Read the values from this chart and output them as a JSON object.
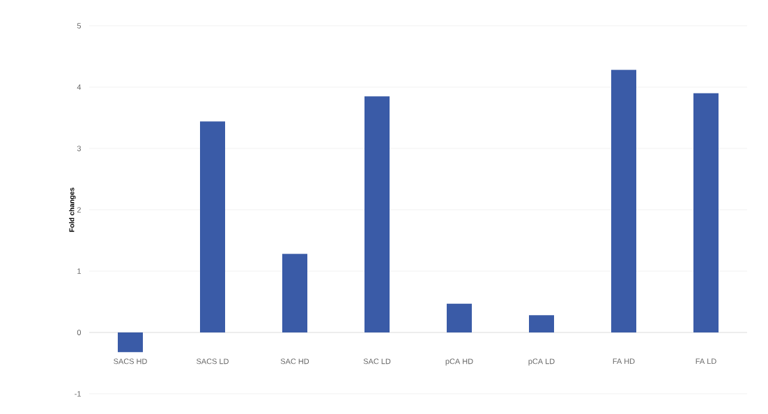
{
  "chart_data": {
    "type": "bar",
    "ylabel": "Fold changes",
    "categories": [
      "SACS HD",
      "SACS LD",
      "SAC HD",
      "SAC LD",
      "pCA HD",
      "pCA LD",
      "FA HD",
      "FA LD"
    ],
    "values": [
      -0.32,
      3.44,
      1.28,
      3.85,
      0.47,
      0.28,
      4.28,
      3.9
    ],
    "color": "#3a5ba7",
    "ylim": [
      -1,
      5
    ],
    "yticks": [
      -1,
      0,
      1,
      2,
      3,
      4,
      5
    ],
    "grid": "y"
  }
}
